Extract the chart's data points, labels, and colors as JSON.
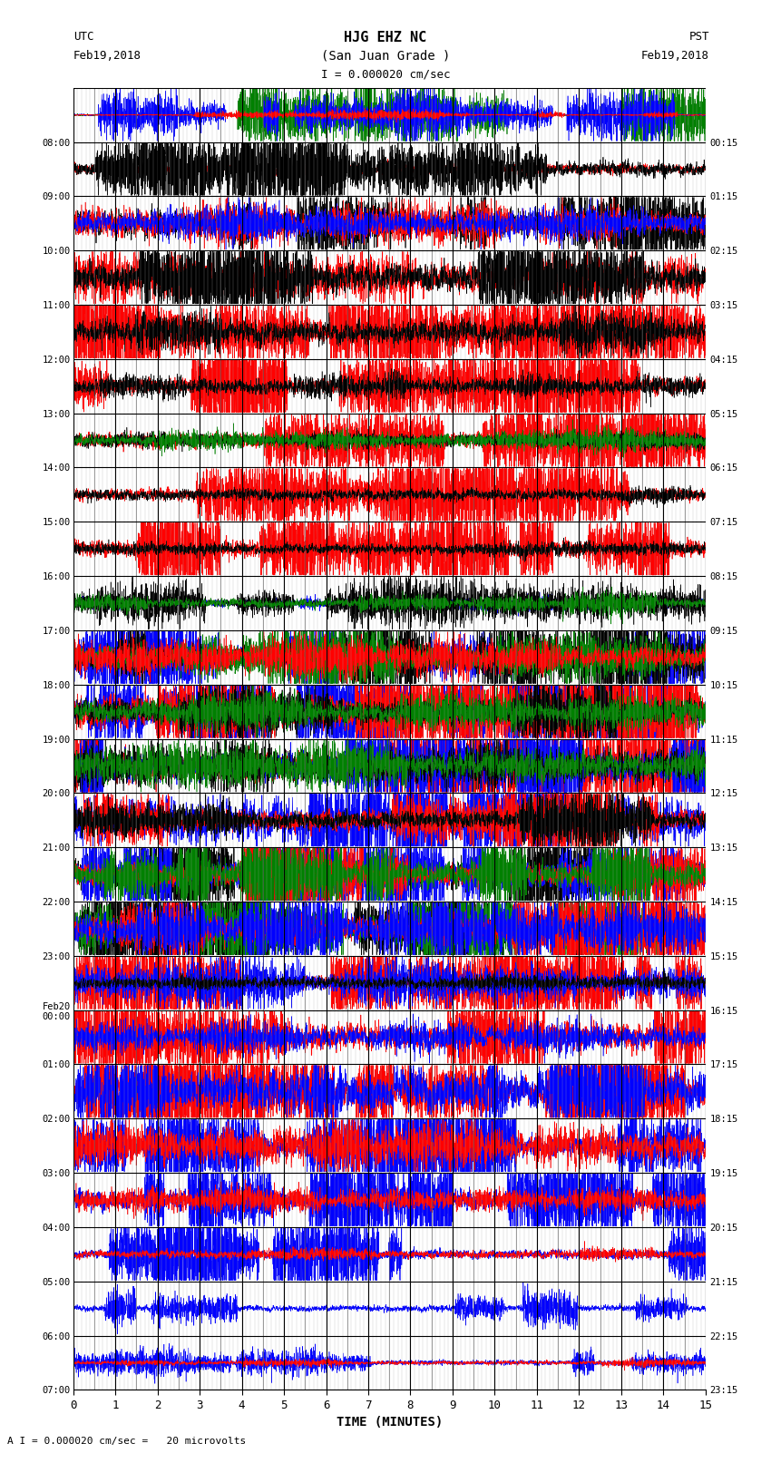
{
  "title_line1": "HJG EHZ NC",
  "title_line2": "(San Juan Grade )",
  "scale_label": "I = 0.000020 cm/sec",
  "bottom_scale": "A I = 0.000020 cm/sec =   20 microvolts",
  "left_label": "UTC",
  "right_label": "PST",
  "left_date": "Feb19,2018",
  "right_date": "Feb19,2018",
  "xlabel": "TIME (MINUTES)",
  "xmin": 0,
  "xmax": 15,
  "xticks": [
    0,
    1,
    2,
    3,
    4,
    5,
    6,
    7,
    8,
    9,
    10,
    11,
    12,
    13,
    14,
    15
  ],
  "bg_color": "#ffffff",
  "grid_major_color": "#000000",
  "grid_minor_color": "#555555",
  "utc_times": [
    "08:00",
    "09:00",
    "10:00",
    "11:00",
    "12:00",
    "13:00",
    "14:00",
    "15:00",
    "16:00",
    "17:00",
    "18:00",
    "19:00",
    "20:00",
    "21:00",
    "22:00",
    "23:00",
    "Feb20\n00:00",
    "01:00",
    "02:00",
    "03:00",
    "04:00",
    "05:00",
    "06:00",
    "07:00"
  ],
  "pst_times": [
    "00:15",
    "01:15",
    "02:15",
    "03:15",
    "04:15",
    "05:15",
    "06:15",
    "07:15",
    "08:15",
    "09:15",
    "10:15",
    "11:15",
    "12:15",
    "13:15",
    "14:15",
    "15:15",
    "16:15",
    "17:15",
    "18:15",
    "19:15",
    "20:15",
    "21:15",
    "22:15",
    "23:15"
  ],
  "n_rows": 24,
  "figwidth": 8.5,
  "figheight": 16.13,
  "dpi": 100,
  "noise_seed": 42,
  "row_specs": [
    {
      "colors": [
        "green",
        "blue",
        "red"
      ],
      "amps": [
        2.0,
        1.5,
        0.3
      ],
      "base_noise": 0.02
    },
    {
      "colors": [
        "red",
        "black"
      ],
      "amps": [
        0.4,
        2.5
      ],
      "base_noise": 0.15
    },
    {
      "colors": [
        "black",
        "red",
        "blue"
      ],
      "amps": [
        3.0,
        1.5,
        1.2
      ],
      "base_noise": 0.3
    },
    {
      "colors": [
        "red",
        "black"
      ],
      "amps": [
        1.5,
        3.0
      ],
      "base_noise": 0.3
    },
    {
      "colors": [
        "red",
        "black"
      ],
      "amps": [
        3.5,
        1.5
      ],
      "base_noise": 0.3
    },
    {
      "colors": [
        "red",
        "black"
      ],
      "amps": [
        3.5,
        0.8
      ],
      "base_noise": 0.2
    },
    {
      "colors": [
        "red",
        "black",
        "green"
      ],
      "amps": [
        3.5,
        0.5,
        0.8
      ],
      "base_noise": 0.2
    },
    {
      "colors": [
        "red",
        "black"
      ],
      "amps": [
        3.5,
        0.5
      ],
      "base_noise": 0.2
    },
    {
      "colors": [
        "red",
        "black"
      ],
      "amps": [
        3.0,
        0.5
      ],
      "base_noise": 0.2
    },
    {
      "colors": [
        "blue",
        "black",
        "green"
      ],
      "amps": [
        0.5,
        1.5,
        0.8
      ],
      "base_noise": 0.1
    },
    {
      "colors": [
        "blue",
        "black",
        "green",
        "red"
      ],
      "amps": [
        3.0,
        3.0,
        2.0,
        1.5
      ],
      "base_noise": 0.3
    },
    {
      "colors": [
        "blue",
        "red",
        "black",
        "green"
      ],
      "amps": [
        3.5,
        3.5,
        2.0,
        1.5
      ],
      "base_noise": 0.3
    },
    {
      "colors": [
        "red",
        "blue",
        "black",
        "green"
      ],
      "amps": [
        3.5,
        3.5,
        1.5,
        1.5
      ],
      "base_noise": 0.3
    },
    {
      "colors": [
        "blue",
        "red",
        "black"
      ],
      "amps": [
        3.5,
        3.5,
        2.5
      ],
      "base_noise": 0.3
    },
    {
      "colors": [
        "black",
        "blue",
        "red",
        "green"
      ],
      "amps": [
        3.5,
        3.5,
        3.5,
        3.0
      ],
      "base_noise": 0.3
    },
    {
      "colors": [
        "black",
        "green",
        "red",
        "blue"
      ],
      "amps": [
        3.5,
        3.5,
        3.5,
        2.0
      ],
      "base_noise": 0.3
    },
    {
      "colors": [
        "red",
        "blue",
        "black"
      ],
      "amps": [
        3.5,
        1.5,
        0.5
      ],
      "base_noise": 0.2
    },
    {
      "colors": [
        "red",
        "blue"
      ],
      "amps": [
        3.5,
        1.2
      ],
      "base_noise": 0.3
    },
    {
      "colors": [
        "red",
        "blue"
      ],
      "amps": [
        3.5,
        2.5
      ],
      "base_noise": 0.3
    },
    {
      "colors": [
        "blue",
        "red"
      ],
      "amps": [
        3.5,
        1.5
      ],
      "base_noise": 0.3
    },
    {
      "colors": [
        "blue",
        "red"
      ],
      "amps": [
        3.5,
        0.8
      ],
      "base_noise": 0.2
    },
    {
      "colors": [
        "blue",
        "red"
      ],
      "amps": [
        3.0,
        0.5
      ],
      "base_noise": 0.1
    },
    {
      "colors": [
        "blue"
      ],
      "amps": [
        1.0
      ],
      "base_noise": 0.05
    },
    {
      "colors": [
        "blue",
        "red"
      ],
      "amps": [
        0.8,
        0.3
      ],
      "base_noise": 0.05
    }
  ]
}
